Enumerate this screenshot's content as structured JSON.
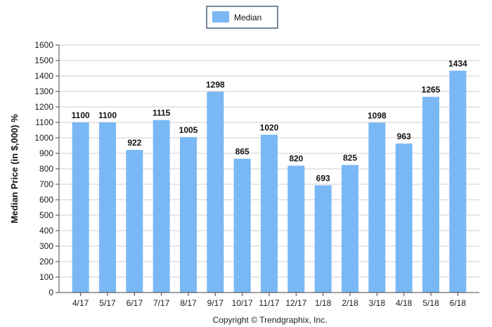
{
  "chart_data": {
    "type": "bar",
    "categories": [
      "4/17",
      "5/17",
      "6/17",
      "7/17",
      "8/17",
      "9/17",
      "10/17",
      "11/17",
      "12/17",
      "1/18",
      "2/18",
      "3/18",
      "4/18",
      "5/18",
      "6/18"
    ],
    "series": [
      {
        "name": "Median",
        "values": [
          1100,
          1100,
          922,
          1115,
          1005,
          1298,
          865,
          1020,
          820,
          693,
          825,
          1098,
          963,
          1265,
          1434
        ],
        "color": "#7ab8f5"
      }
    ],
    "ylabel": "Median Price (in $,000) %",
    "xlabel": "",
    "ylim": [
      0,
      1600
    ],
    "yticks": [
      0,
      100,
      200,
      300,
      400,
      500,
      600,
      700,
      800,
      900,
      1000,
      1100,
      1200,
      1300,
      1400,
      1500,
      1600
    ],
    "grid": true,
    "legend": "top-center"
  },
  "credit": "Copyright © Trendgraphix, Inc."
}
